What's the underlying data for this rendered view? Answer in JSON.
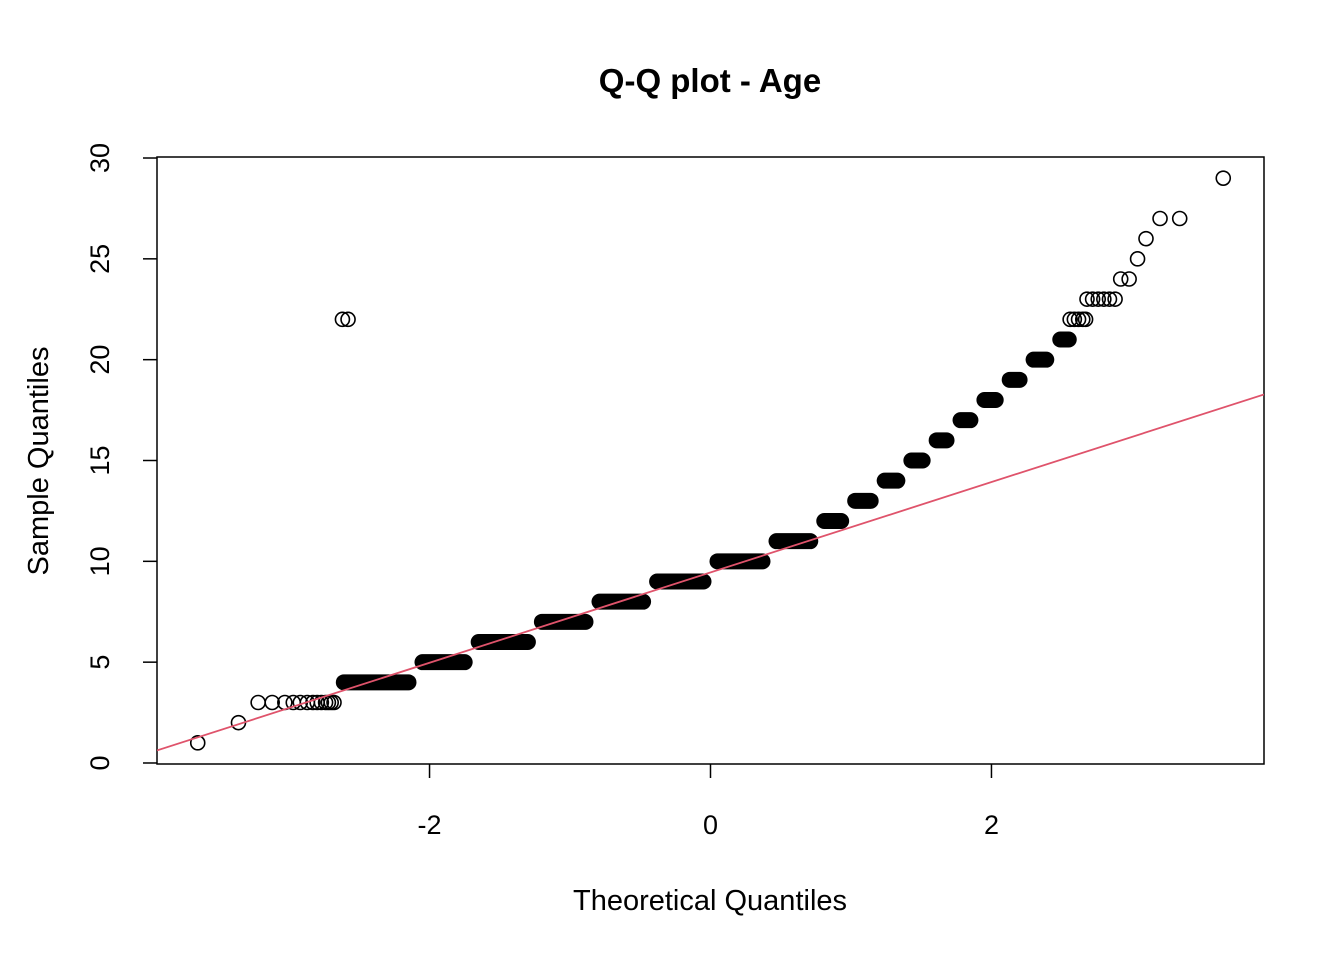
{
  "chart_data": {
    "type": "scatter",
    "title": "Q-Q plot - Age",
    "xlabel": "Theoretical Quantiles",
    "ylabel": "Sample Quantiles",
    "xlim": [
      -3.94,
      3.94
    ],
    "ylim": [
      -0.05,
      30.05
    ],
    "x_ticks": [
      -2,
      0,
      2
    ],
    "x_tick_labels": [
      "-2",
      "0",
      "2"
    ],
    "y_ticks": [
      0,
      5,
      10,
      15,
      20,
      25,
      30
    ],
    "y_tick_labels": [
      "0",
      "5",
      "10",
      "15",
      "20",
      "25",
      "30"
    ],
    "grid": false,
    "legend": "none",
    "point_style": "open-circle",
    "point_color": "#000000",
    "reference_line": {
      "intercept": 9.45,
      "slope": 2.24,
      "color": "#DF536B"
    },
    "series": [
      {
        "runs": [
          {
            "y": 4,
            "x_start": -2.66,
            "x_end": -2.1
          },
          {
            "y": 5,
            "x_start": -2.1,
            "x_end": -1.7
          },
          {
            "y": 6,
            "x_start": -1.7,
            "x_end": -1.25
          },
          {
            "y": 7,
            "x_start": -1.25,
            "x_end": -0.84
          },
          {
            "y": 8,
            "x_start": -0.84,
            "x_end": -0.43
          },
          {
            "y": 9,
            "x_start": -0.43,
            "x_end": 0.0
          },
          {
            "y": 10,
            "x_start": 0.0,
            "x_end": 0.42
          },
          {
            "y": 11,
            "x_start": 0.42,
            "x_end": 0.76
          },
          {
            "y": 12,
            "x_start": 0.76,
            "x_end": 0.98
          },
          {
            "y": 13,
            "x_start": 0.98,
            "x_end": 1.19
          },
          {
            "y": 14,
            "x_start": 1.19,
            "x_end": 1.38
          },
          {
            "y": 15,
            "x_start": 1.38,
            "x_end": 1.56
          },
          {
            "y": 16,
            "x_start": 1.56,
            "x_end": 1.73
          },
          {
            "y": 17,
            "x_start": 1.73,
            "x_end": 1.9
          },
          {
            "y": 18,
            "x_start": 1.9,
            "x_end": 2.08
          },
          {
            "y": 19,
            "x_start": 2.08,
            "x_end": 2.25
          },
          {
            "y": 20,
            "x_start": 2.25,
            "x_end": 2.44
          },
          {
            "y": 21,
            "x_start": 2.44,
            "x_end": 2.6
          }
        ],
        "points": [
          {
            "x": -3.65,
            "y": 1
          },
          {
            "x": -3.36,
            "y": 2
          },
          {
            "x": -3.22,
            "y": 3
          },
          {
            "x": -3.12,
            "y": 3
          },
          {
            "x": -3.03,
            "y": 3
          },
          {
            "x": -2.97,
            "y": 3
          },
          {
            "x": -2.92,
            "y": 3
          },
          {
            "x": -2.87,
            "y": 3
          },
          {
            "x": -2.83,
            "y": 3
          },
          {
            "x": -2.8,
            "y": 3
          },
          {
            "x": -2.77,
            "y": 3
          },
          {
            "x": -2.74,
            "y": 3
          },
          {
            "x": -2.72,
            "y": 3
          },
          {
            "x": -2.7,
            "y": 3
          },
          {
            "x": -2.68,
            "y": 3
          },
          {
            "x": -2.62,
            "y": 22
          },
          {
            "x": -2.58,
            "y": 22
          },
          {
            "x": 2.56,
            "y": 22
          },
          {
            "x": 2.59,
            "y": 22
          },
          {
            "x": 2.62,
            "y": 22
          },
          {
            "x": 2.65,
            "y": 22
          },
          {
            "x": 2.67,
            "y": 22
          },
          {
            "x": 2.68,
            "y": 23
          },
          {
            "x": 2.72,
            "y": 23
          },
          {
            "x": 2.76,
            "y": 23
          },
          {
            "x": 2.8,
            "y": 23
          },
          {
            "x": 2.84,
            "y": 23
          },
          {
            "x": 2.88,
            "y": 23
          },
          {
            "x": 2.92,
            "y": 24
          },
          {
            "x": 2.98,
            "y": 24
          },
          {
            "x": 3.04,
            "y": 25
          },
          {
            "x": 3.1,
            "y": 26
          },
          {
            "x": 3.2,
            "y": 27
          },
          {
            "x": 3.34,
            "y": 27
          },
          {
            "x": 3.65,
            "y": 29
          }
        ]
      }
    ]
  }
}
